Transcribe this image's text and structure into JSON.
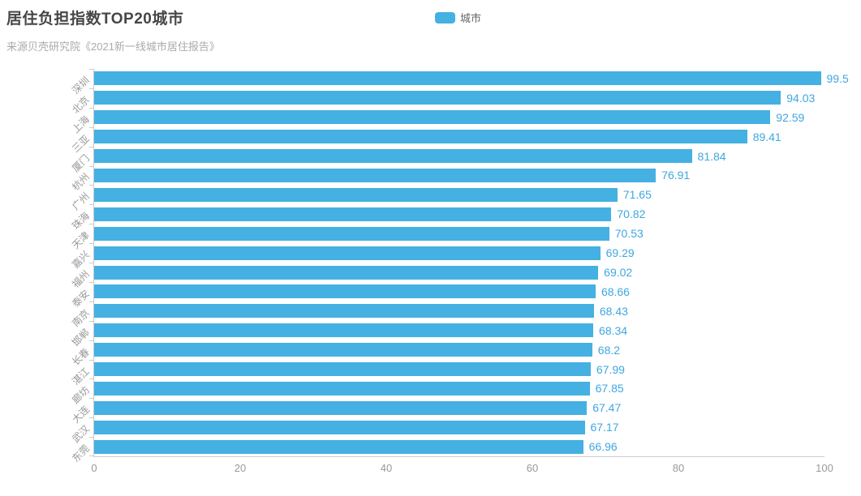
{
  "header": {
    "title": "居住负担指数TOP20城市",
    "subtitle": "来源贝壳研究院《2021新一线城市居住报告》"
  },
  "legend": {
    "label": "城市"
  },
  "colors": {
    "bar": "#45b0e2",
    "value_label": "#3fa7e1",
    "axis_line": "#cccccc",
    "axis_tick_label": "#999999",
    "title": "#464646",
    "subtitle": "#aaaaaa"
  },
  "chart_data": {
    "type": "bar",
    "orientation": "horizontal",
    "title": "居住负担指数TOP20城市",
    "subtitle": "来源贝壳研究院《2021新一线城市居住报告》",
    "series_name": "城市",
    "categories": [
      "深圳",
      "北京",
      "上海",
      "三亚",
      "厦门",
      "杭州",
      "广州",
      "珠海",
      "天津",
      "嘉兴",
      "福州",
      "泰安",
      "南京",
      "邯郸",
      "长春",
      "湛江",
      "廊坊",
      "大连",
      "武汉",
      "东莞"
    ],
    "values": [
      99.5,
      94.03,
      92.59,
      89.41,
      81.84,
      76.91,
      71.65,
      70.82,
      70.53,
      69.29,
      69.02,
      68.66,
      68.43,
      68.34,
      68.2,
      67.99,
      67.85,
      67.47,
      67.17,
      66.96
    ],
    "xlim": [
      0,
      100
    ],
    "x_ticks": [
      0,
      20,
      40,
      60,
      80,
      100
    ],
    "grid": false,
    "legend_position": "top-center",
    "value_labels": "right-of-bar"
  }
}
